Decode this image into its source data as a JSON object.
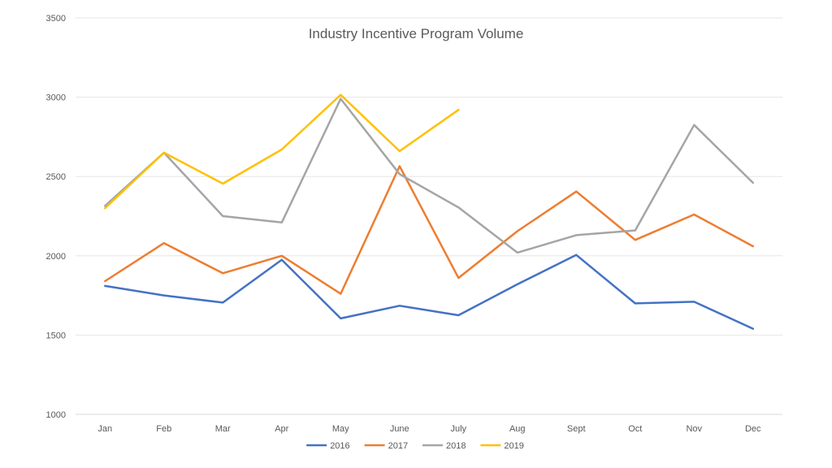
{
  "chart_data": {
    "type": "line",
    "title": "Industry Incentive Program Volume",
    "categories": [
      "Jan",
      "Feb",
      "Mar",
      "Apr",
      "May",
      "June",
      "July",
      "Aug",
      "Sept",
      "Oct",
      "Nov",
      "Dec"
    ],
    "ylim": [
      1000,
      3500
    ],
    "yticks": [
      1000,
      1500,
      2000,
      2500,
      3000,
      3500
    ],
    "grid": true,
    "legend_position": "bottom",
    "series": [
      {
        "name": "2016",
        "color": "#4472C4",
        "values": [
          1810,
          1750,
          1705,
          1975,
          1605,
          1685,
          1625,
          1820,
          2005,
          1700,
          1710,
          1540
        ]
      },
      {
        "name": "2017",
        "color": "#ED7D31",
        "values": [
          1840,
          2080,
          1890,
          2000,
          1760,
          2565,
          1860,
          2155,
          2405,
          2100,
          2260,
          2060
        ]
      },
      {
        "name": "2018",
        "color": "#A5A5A5",
        "values": [
          2315,
          2650,
          2250,
          2210,
          2990,
          2515,
          2305,
          2020,
          2130,
          2160,
          2825,
          2460
        ]
      },
      {
        "name": "2019",
        "color": "#FFC000",
        "values": [
          2300,
          2650,
          2455,
          2670,
          3015,
          2660,
          2920,
          null,
          null,
          null,
          null,
          null
        ]
      }
    ]
  }
}
